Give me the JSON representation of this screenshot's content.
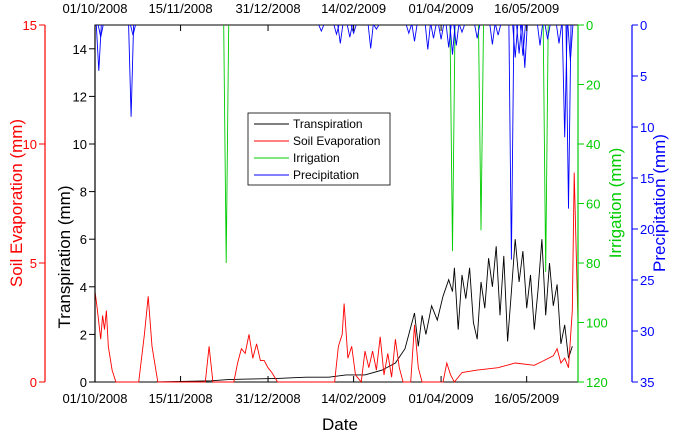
{
  "chart_data": {
    "type": "line",
    "xlabel": "Date",
    "x_ticks": [
      "01/10/2008",
      "15/11/2008",
      "31/12/2008",
      "14/02/2009",
      "01/04/2009",
      "16/05/2009"
    ],
    "x_range": [
      "2008-10-01",
      "2009-06-12"
    ],
    "axes": {
      "transpiration": {
        "label": "Transpiration (mm)",
        "range": [
          0,
          15
        ],
        "ticks": [
          0,
          2,
          4,
          6,
          8,
          10,
          12,
          14
        ],
        "side": "left-inner",
        "color": "#000000"
      },
      "soil_evaporation": {
        "label": "Soil Evaporation (mm)",
        "range": [
          0,
          15
        ],
        "ticks": [
          0,
          5,
          10,
          15
        ],
        "side": "left-outer",
        "color": "#ff0000"
      },
      "irrigation": {
        "label": "Irrigation (mm)",
        "range": [
          0,
          120
        ],
        "inverted": true,
        "ticks": [
          0,
          20,
          40,
          60,
          80,
          100,
          120
        ],
        "side": "right-inner",
        "color": "#00cc00"
      },
      "precipitation": {
        "label": "Precipitation (mm)",
        "range": [
          0,
          35
        ],
        "inverted": true,
        "ticks": [
          0,
          5,
          10,
          15,
          20,
          25,
          30,
          35
        ],
        "side": "right-outer",
        "color": "#0000ff"
      }
    },
    "legend": {
      "placement": "top-center",
      "entries": [
        "Transpiration",
        "Soil Evaporation",
        "Irrigation",
        "Precipitation"
      ]
    },
    "series": [
      {
        "name": "Transpiration",
        "axis": "transpiration",
        "color": "#000000",
        "points": [
          [
            "2008-10-01",
            0
          ],
          [
            "2008-11-01",
            0
          ],
          [
            "2008-11-15",
            0.02
          ],
          [
            "2008-12-01",
            0.05
          ],
          [
            "2008-12-10",
            0.1
          ],
          [
            "2008-12-20",
            0.12
          ],
          [
            "2009-01-05",
            0.15
          ],
          [
            "2009-01-20",
            0.2
          ],
          [
            "2009-02-01",
            0.2
          ],
          [
            "2009-02-10",
            0.3
          ],
          [
            "2009-02-20",
            0.3
          ],
          [
            "2009-03-01",
            0.5
          ],
          [
            "2009-03-08",
            0.8
          ],
          [
            "2009-03-13",
            1.4
          ],
          [
            "2009-03-16",
            2.3
          ],
          [
            "2009-03-18",
            2.9
          ],
          [
            "2009-03-20",
            1.5
          ],
          [
            "2009-03-22",
            2.8
          ],
          [
            "2009-03-24",
            2.0
          ],
          [
            "2009-03-27",
            3.2
          ],
          [
            "2009-03-30",
            2.6
          ],
          [
            "2009-04-02",
            3.6
          ],
          [
            "2009-04-05",
            4.3
          ],
          [
            "2009-04-07",
            3.8
          ],
          [
            "2009-04-08",
            4.8
          ],
          [
            "2009-04-10",
            2.2
          ],
          [
            "2009-04-12",
            4.5
          ],
          [
            "2009-04-14",
            3.5
          ],
          [
            "2009-04-16",
            4.8
          ],
          [
            "2009-04-18",
            2.5
          ],
          [
            "2009-04-20",
            1.8
          ],
          [
            "2009-04-22",
            4.2
          ],
          [
            "2009-04-24",
            3.1
          ],
          [
            "2009-04-26",
            5.2
          ],
          [
            "2009-04-28",
            4.0
          ],
          [
            "2009-04-30",
            5.7
          ],
          [
            "2009-05-02",
            2.8
          ],
          [
            "2009-05-04",
            5.3
          ],
          [
            "2009-05-06",
            1.7
          ],
          [
            "2009-05-08",
            3.8
          ],
          [
            "2009-05-10",
            6.0
          ],
          [
            "2009-05-12",
            4.2
          ],
          [
            "2009-05-14",
            5.5
          ],
          [
            "2009-05-16",
            3.1
          ],
          [
            "2009-05-18",
            4.5
          ],
          [
            "2009-05-20",
            2.2
          ],
          [
            "2009-05-22",
            3.9
          ],
          [
            "2009-05-24",
            6.0
          ],
          [
            "2009-05-26",
            2.8
          ],
          [
            "2009-05-28",
            5.0
          ],
          [
            "2009-05-30",
            3.2
          ],
          [
            "2009-06-01",
            4.1
          ],
          [
            "2009-06-03",
            1.6
          ],
          [
            "2009-06-05",
            2.4
          ],
          [
            "2009-06-07",
            1.0
          ],
          [
            "2009-06-09",
            1.5
          ]
        ]
      },
      {
        "name": "Soil Evaporation",
        "axis": "soil_evaporation",
        "color": "#ff0000",
        "points": [
          [
            "2008-10-01",
            3.8
          ],
          [
            "2008-10-02",
            3.2
          ],
          [
            "2008-10-04",
            1.8
          ],
          [
            "2008-10-05",
            2.8
          ],
          [
            "2008-10-06",
            2.2
          ],
          [
            "2008-10-07",
            3.0
          ],
          [
            "2008-10-08",
            1.5
          ],
          [
            "2008-10-10",
            0.5
          ],
          [
            "2008-10-12",
            0
          ],
          [
            "2008-10-24",
            0
          ],
          [
            "2008-10-27",
            2.0
          ],
          [
            "2008-10-29",
            3.6
          ],
          [
            "2008-10-31",
            1.5
          ],
          [
            "2008-11-03",
            0
          ],
          [
            "2008-11-28",
            0
          ],
          [
            "2008-11-30",
            1.5
          ],
          [
            "2008-12-02",
            0
          ],
          [
            "2008-12-13",
            0
          ],
          [
            "2008-12-15",
            0.8
          ],
          [
            "2008-12-17",
            1.4
          ],
          [
            "2008-12-19",
            1.2
          ],
          [
            "2008-12-21",
            2.0
          ],
          [
            "2008-12-23",
            1.0
          ],
          [
            "2008-12-25",
            1.6
          ],
          [
            "2008-12-27",
            0.9
          ],
          [
            "2008-12-29",
            0.9
          ],
          [
            "2008-12-31",
            0.6
          ],
          [
            "2009-01-02",
            0.4
          ],
          [
            "2009-01-05",
            0
          ],
          [
            "2009-02-04",
            0
          ],
          [
            "2009-02-06",
            1.5
          ],
          [
            "2009-02-08",
            2.0
          ],
          [
            "2009-02-09",
            3.3
          ],
          [
            "2009-02-11",
            1.0
          ],
          [
            "2009-02-13",
            1.5
          ],
          [
            "2009-02-15",
            0.3
          ],
          [
            "2009-02-18",
            0
          ],
          [
            "2009-02-20",
            1.3
          ],
          [
            "2009-02-22",
            0.6
          ],
          [
            "2009-02-24",
            1.3
          ],
          [
            "2009-02-26",
            0.5
          ],
          [
            "2009-02-28",
            1.9
          ],
          [
            "2009-03-02",
            0.3
          ],
          [
            "2009-03-04",
            1.2
          ],
          [
            "2009-03-06",
            0.2
          ],
          [
            "2009-03-08",
            1.8
          ],
          [
            "2009-03-10",
            0.6
          ],
          [
            "2009-03-12",
            0
          ],
          [
            "2009-03-16",
            0
          ],
          [
            "2009-03-18",
            2.4
          ],
          [
            "2009-03-20",
            0.6
          ],
          [
            "2009-03-22",
            0
          ],
          [
            "2009-04-02",
            0
          ],
          [
            "2009-04-04",
            0.8
          ],
          [
            "2009-04-06",
            0.3
          ],
          [
            "2009-04-08",
            0
          ],
          [
            "2009-04-12",
            0.4
          ],
          [
            "2009-04-20",
            0.5
          ],
          [
            "2009-05-01",
            0.6
          ],
          [
            "2009-05-10",
            0.8
          ],
          [
            "2009-05-20",
            0.7
          ],
          [
            "2009-05-25",
            0.9
          ],
          [
            "2009-05-30",
            1.1
          ],
          [
            "2009-06-01",
            1.4
          ],
          [
            "2009-06-03",
            0.8
          ],
          [
            "2009-06-05",
            1.0
          ],
          [
            "2009-06-07",
            0.6
          ],
          [
            "2009-06-09",
            3.0
          ],
          [
            "2009-06-10",
            8.8
          ],
          [
            "2009-06-12",
            2.5
          ]
        ]
      },
      {
        "name": "Irrigation",
        "axis": "irrigation",
        "color": "#00cc00",
        "events": [
          [
            "2008-12-09",
            80
          ],
          [
            "2009-04-07",
            76
          ],
          [
            "2009-04-22",
            69
          ],
          [
            "2009-05-26",
            83
          ]
        ]
      },
      {
        "name": "Precipitation",
        "axis": "precipitation",
        "color": "#0000ff",
        "events": [
          [
            "2008-10-03",
            4.5
          ],
          [
            "2008-10-04",
            1.2
          ],
          [
            "2008-10-20",
            9
          ],
          [
            "2008-10-21",
            1
          ],
          [
            "2009-01-28",
            0.6
          ],
          [
            "2009-02-05",
            0.9
          ],
          [
            "2009-02-07",
            1.8
          ],
          [
            "2009-02-12",
            1.2
          ],
          [
            "2009-02-14",
            0.8
          ],
          [
            "2009-02-23",
            2.3
          ],
          [
            "2009-02-26",
            0.4
          ],
          [
            "2009-03-15",
            0.8
          ],
          [
            "2009-03-18",
            1.6
          ],
          [
            "2009-03-25",
            2.4
          ],
          [
            "2009-03-28",
            1.3
          ],
          [
            "2009-04-01",
            1.4
          ],
          [
            "2009-04-05",
            2.2
          ],
          [
            "2009-04-07",
            2.9
          ],
          [
            "2009-04-09",
            2.0
          ],
          [
            "2009-04-12",
            0.7
          ],
          [
            "2009-04-20",
            1.3
          ],
          [
            "2009-04-28",
            1.9
          ],
          [
            "2009-05-01",
            1.0
          ],
          [
            "2009-05-08",
            23
          ],
          [
            "2009-05-10",
            3.2
          ],
          [
            "2009-05-12",
            2.8
          ],
          [
            "2009-05-14",
            3.0
          ],
          [
            "2009-05-15",
            4.2
          ],
          [
            "2009-05-23",
            2.0
          ],
          [
            "2009-05-27",
            1.4
          ],
          [
            "2009-06-02",
            1.8
          ],
          [
            "2009-06-05",
            11
          ],
          [
            "2009-06-07",
            18
          ],
          [
            "2009-06-08",
            3.5
          ]
        ]
      }
    ]
  }
}
